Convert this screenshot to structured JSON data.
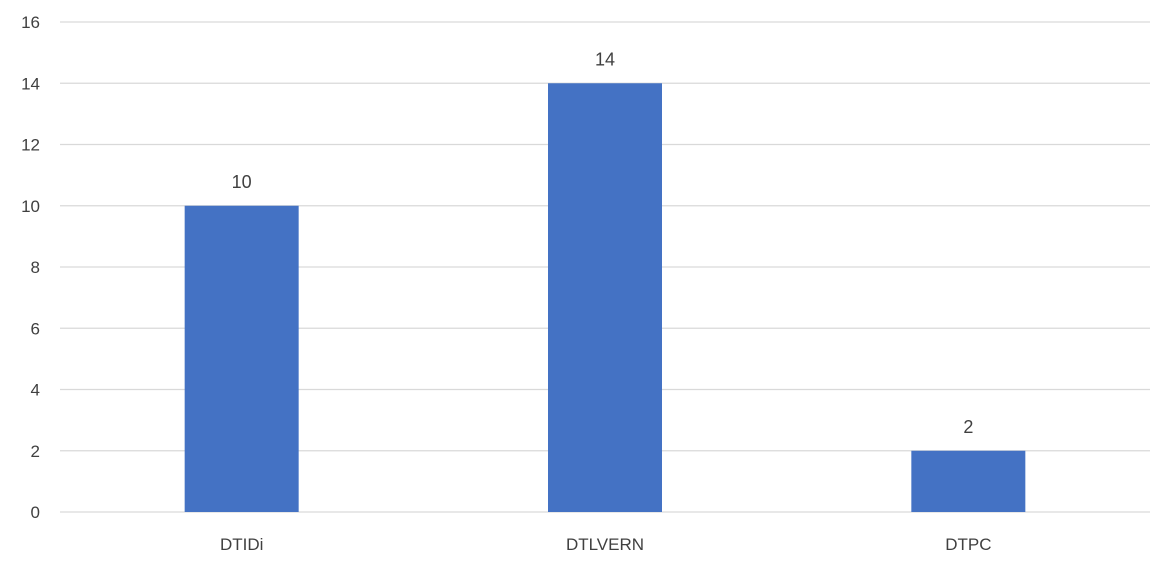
{
  "chart_data": {
    "type": "bar",
    "categories": [
      "DTIDi",
      "DTLVERN",
      "DTPC"
    ],
    "values": [
      10,
      14,
      2
    ],
    "data_labels": [
      "10",
      "14",
      "2"
    ],
    "yticks": [
      "0",
      "2",
      "4",
      "6",
      "8",
      "10",
      "12",
      "14",
      "16"
    ],
    "ylim": [
      0,
      16
    ],
    "grid": true,
    "legend": "none",
    "title": "",
    "xlabel": "",
    "ylabel": ""
  },
  "colors": {
    "bar": "#4472c4",
    "grid": "#d9d9d9",
    "text": "#404040"
  }
}
